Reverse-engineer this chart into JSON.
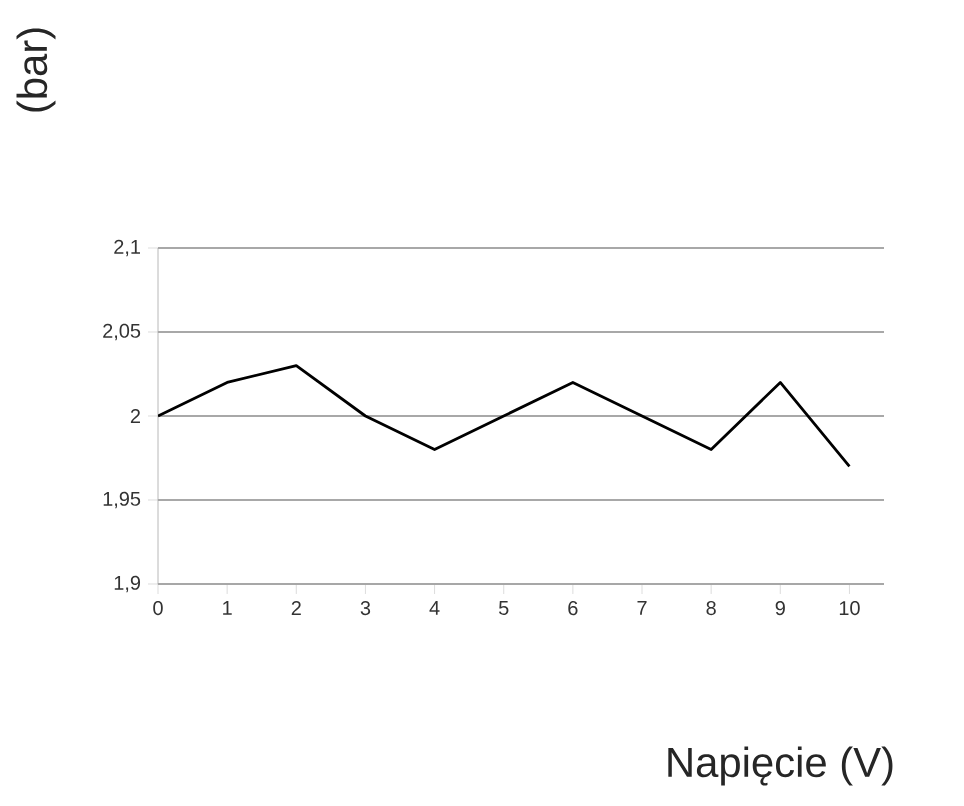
{
  "chart_data": {
    "type": "line",
    "xlabel": "Napięcie (V)",
    "ylabel": "(bar)",
    "x": [
      0,
      1,
      2,
      3,
      4,
      5,
      6,
      7,
      8,
      9,
      10
    ],
    "series": [
      {
        "color": "#000000",
        "values": [
          2.0,
          2.02,
          2.03,
          2.0,
          1.98,
          2.0,
          2.02,
          2.0,
          1.98,
          2.02,
          1.97
        ]
      }
    ],
    "xlim": [
      0,
      10.5
    ],
    "xticks": [
      0,
      1,
      2,
      3,
      4,
      5,
      6,
      7,
      8,
      9,
      10
    ],
    "ylim": [
      1.9,
      2.1
    ],
    "yticks": [
      {
        "value": 1.9,
        "label": "1,9"
      },
      {
        "value": 1.95,
        "label": "1,95"
      },
      2,
      {
        "value": 2.05,
        "label": "2,05"
      },
      {
        "value": 2.1,
        "label": "2,1"
      }
    ],
    "grid": "y",
    "marker": "none",
    "line_style": "solid"
  }
}
